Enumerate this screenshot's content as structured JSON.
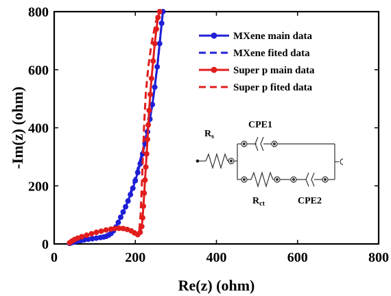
{
  "chart_data": {
    "type": "line",
    "xlabel": "Re(z) (ohm)",
    "ylabel": "-Im(z) (ohm)",
    "xlim": [
      0,
      800
    ],
    "ylim": [
      0,
      800
    ],
    "xticks": [
      0,
      200,
      400,
      600,
      800
    ],
    "yticks": [
      0,
      200,
      400,
      600,
      800
    ],
    "grid": false,
    "legend_position": "top-right",
    "series": [
      {
        "name": "MXene main data",
        "color": "#1f1fd6",
        "style": "solid",
        "marker": "circle",
        "points": [
          [
            38,
            2
          ],
          [
            42,
            4
          ],
          [
            46,
            6
          ],
          [
            52,
            8
          ],
          [
            58,
            10
          ],
          [
            66,
            12
          ],
          [
            74,
            14
          ],
          [
            84,
            16
          ],
          [
            94,
            18
          ],
          [
            104,
            20
          ],
          [
            114,
            22
          ],
          [
            122,
            24
          ],
          [
            128,
            26
          ],
          [
            134,
            30
          ],
          [
            140,
            36
          ],
          [
            146,
            45
          ],
          [
            152,
            58
          ],
          [
            158,
            74
          ],
          [
            164,
            92
          ],
          [
            170,
            110
          ],
          [
            176,
            128
          ],
          [
            182,
            148
          ],
          [
            188,
            170
          ],
          [
            194,
            192
          ],
          [
            200,
            218
          ],
          [
            206,
            246
          ],
          [
            212,
            276
          ],
          [
            218,
            310
          ],
          [
            224,
            346
          ],
          [
            230,
            386
          ],
          [
            236,
            430
          ],
          [
            242,
            480
          ],
          [
            248,
            540
          ],
          [
            254,
            610
          ],
          [
            260,
            690
          ],
          [
            265,
            760
          ],
          [
            268,
            800
          ]
        ]
      },
      {
        "name": "MXene fited data",
        "color": "#1f1fd6",
        "style": "dashed",
        "marker": "none",
        "points": [
          [
            38,
            0
          ],
          [
            70,
            12
          ],
          [
            110,
            20
          ],
          [
            135,
            26
          ],
          [
            145,
            40
          ],
          [
            160,
            80
          ],
          [
            180,
            140
          ],
          [
            200,
            230
          ],
          [
            220,
            330
          ],
          [
            240,
            460
          ],
          [
            255,
            620
          ],
          [
            268,
            800
          ]
        ]
      },
      {
        "name": "Super p main data",
        "color": "#e11d1d",
        "style": "solid",
        "marker": "circle",
        "points": [
          [
            38,
            4
          ],
          [
            44,
            10
          ],
          [
            50,
            15
          ],
          [
            58,
            20
          ],
          [
            68,
            25
          ],
          [
            80,
            30
          ],
          [
            92,
            35
          ],
          [
            104,
            40
          ],
          [
            116,
            44
          ],
          [
            128,
            48
          ],
          [
            140,
            51
          ],
          [
            150,
            53
          ],
          [
            160,
            54
          ],
          [
            170,
            53
          ],
          [
            180,
            50
          ],
          [
            190,
            45
          ],
          [
            198,
            38
          ],
          [
            206,
            32
          ],
          [
            212,
            40
          ],
          [
            216,
            60
          ],
          [
            218,
            90
          ],
          [
            220,
            130
          ],
          [
            222,
            175
          ],
          [
            224,
            220
          ],
          [
            226,
            265
          ],
          [
            228,
            310
          ],
          [
            230,
            360
          ],
          [
            232,
            410
          ],
          [
            234,
            460
          ],
          [
            237,
            515
          ],
          [
            240,
            570
          ],
          [
            244,
            630
          ],
          [
            248,
            690
          ],
          [
            252,
            740
          ],
          [
            256,
            780
          ],
          [
            260,
            800
          ]
        ]
      },
      {
        "name": "Super p fited data",
        "color": "#e11d1d",
        "style": "dashed",
        "marker": "none",
        "points": [
          [
            38,
            2
          ],
          [
            60,
            22
          ],
          [
            90,
            36
          ],
          [
            120,
            46
          ],
          [
            150,
            52
          ],
          [
            175,
            52
          ],
          [
            195,
            42
          ],
          [
            205,
            32
          ],
          [
            210,
            50
          ],
          [
            213,
            100
          ],
          [
            216,
            200
          ],
          [
            219,
            310
          ],
          [
            222,
            420
          ],
          [
            226,
            520
          ],
          [
            232,
            610
          ],
          [
            240,
            690
          ],
          [
            250,
            760
          ],
          [
            258,
            800
          ]
        ]
      }
    ],
    "inset": {
      "labels": {
        "rs": "R",
        "rs_sub": "s",
        "cpe1": "CPE1",
        "rct": "R",
        "rct_sub": "ct",
        "cpe2": "CPE2"
      }
    }
  }
}
